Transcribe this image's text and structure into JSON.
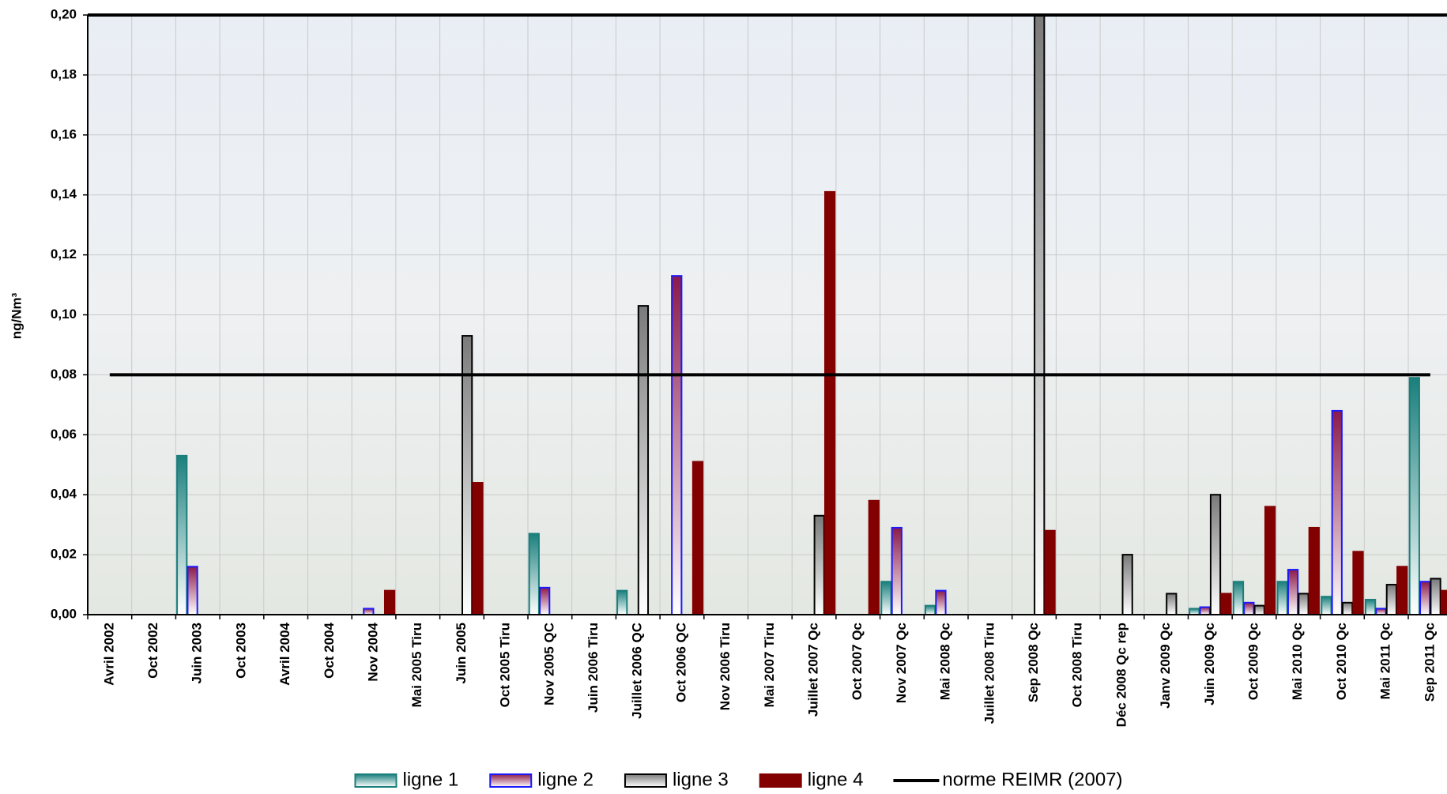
{
  "chart_data": {
    "type": "bar",
    "y_label": "ng/Nm³",
    "categories": [
      "Avril 2002",
      "Oct 2002",
      "Juin 2003",
      "Oct 2003",
      "Avril 2004",
      "Oct 2004",
      "Nov 2004",
      "Mai 2005 Tiru",
      "Juin 2005",
      "Oct 2005 Tiru",
      "Nov 2005 QC",
      "Juin 2006 Tiru",
      "Juillet 2006 QC",
      "Oct 2006 QC",
      "Nov 2006 Tiru",
      "Mai 2007 Tiru",
      "Juillet 2007 Qc",
      "Oct 2007 Qc",
      "Nov 2007 Qc",
      "Mai 2008 Qc",
      "Juillet 2008 Tiru",
      "Sep 2008  Qc",
      "Oct 2008 Tiru",
      "Déc 2008 Qc rep",
      "Janv 2009 Qc",
      "Juin 2009 Qc",
      "Oct 2009 Qc",
      "Mai 2010 Qc",
      "Oct 2010 Qc",
      "Mai 2011 Qc",
      "Sep 2011  Qc"
    ],
    "series": [
      {
        "name": "ligne 1",
        "color": "#1a7f7c",
        "border": "#1a7f7c",
        "gradient": true,
        "values": [
          null,
          null,
          0.053,
          null,
          null,
          null,
          null,
          null,
          null,
          null,
          0.027,
          null,
          0.008,
          null,
          null,
          null,
          null,
          null,
          0.011,
          0.003,
          null,
          null,
          null,
          null,
          null,
          0.002,
          0.011,
          0.011,
          0.006,
          0.005,
          0.079
        ]
      },
      {
        "name": "ligne 2",
        "color": "#8b1a4a",
        "border": "#1a1aff",
        "gradient": true,
        "values": [
          null,
          null,
          0.016,
          null,
          null,
          null,
          0.002,
          null,
          null,
          null,
          0.009,
          null,
          null,
          0.113,
          null,
          null,
          null,
          null,
          0.029,
          0.008,
          null,
          null,
          null,
          null,
          null,
          0.0025,
          0.004,
          0.015,
          0.068,
          0.002,
          0.011
        ]
      },
      {
        "name": "ligne 3",
        "color": "#7a7a7a",
        "border": "#000000",
        "gradient": true,
        "values": [
          null,
          null,
          null,
          null,
          null,
          null,
          null,
          null,
          0.093,
          null,
          null,
          null,
          0.103,
          null,
          null,
          null,
          0.033,
          null,
          null,
          null,
          null,
          0.2,
          null,
          0.02,
          0.007,
          0.04,
          0.003,
          0.007,
          0.004,
          0.01,
          0.012
        ]
      },
      {
        "name": "ligne 4",
        "color": "#820000",
        "border": "#820000",
        "gradient": false,
        "values": [
          null,
          null,
          null,
          null,
          null,
          null,
          0.008,
          null,
          0.044,
          null,
          null,
          null,
          null,
          0.051,
          null,
          null,
          0.141,
          0.038,
          null,
          null,
          null,
          0.028,
          null,
          null,
          null,
          0.007,
          0.036,
          0.029,
          0.021,
          0.016,
          0.008
        ]
      }
    ],
    "reference_lines": [
      {
        "name": "norme REIMR (2007)",
        "value": 0.08,
        "color": "#000000"
      }
    ],
    "ylim": [
      0,
      0.2
    ],
    "yticks": [
      {
        "value": 0,
        "label": "0,00"
      },
      {
        "value": 0.02,
        "label": "0,02"
      },
      {
        "value": 0.04,
        "label": "0,04"
      },
      {
        "value": 0.06,
        "label": "0,06"
      },
      {
        "value": 0.08,
        "label": "0,08"
      },
      {
        "value": 0.1,
        "label": "0,10"
      },
      {
        "value": 0.12,
        "label": "0,12"
      },
      {
        "value": 0.14,
        "label": "0,14"
      },
      {
        "value": 0.16,
        "label": "0,16"
      },
      {
        "value": 0.18,
        "label": "0,18"
      },
      {
        "value": 0.2,
        "label": "0,20"
      }
    ],
    "grid": true
  }
}
